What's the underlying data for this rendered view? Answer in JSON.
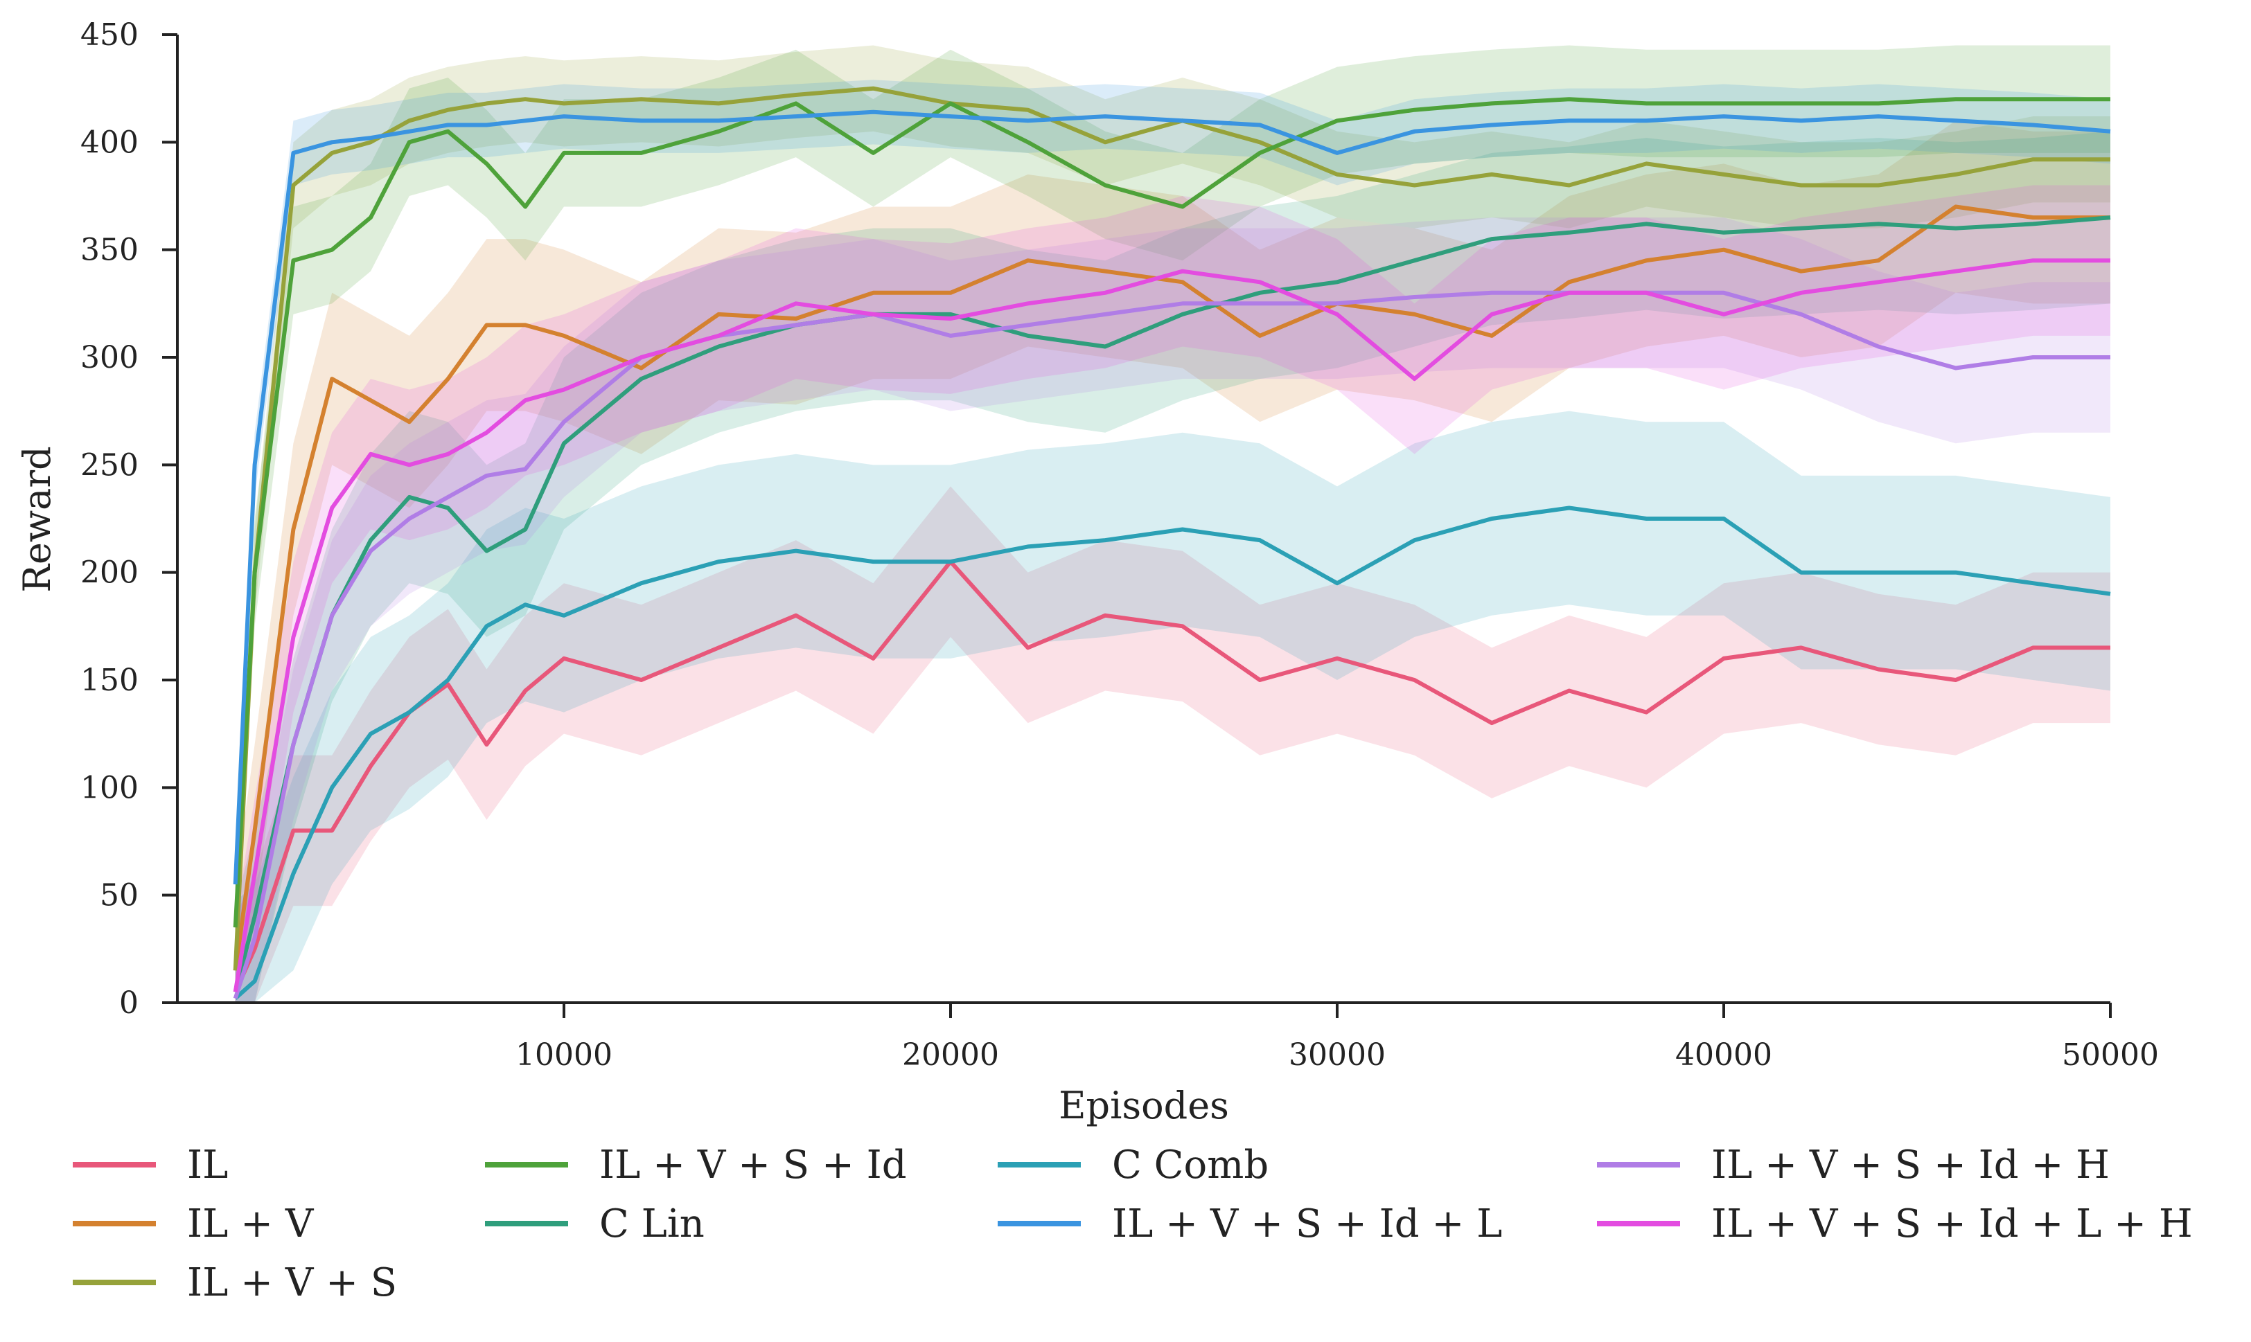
{
  "chart_data": {
    "type": "line",
    "title": "",
    "xlabel": "Episodes",
    "ylabel": "Reward",
    "xlim": [
      0,
      50000
    ],
    "ylim": [
      0,
      450
    ],
    "xticks": [
      10000,
      20000,
      30000,
      40000,
      50000
    ],
    "yticks": [
      0,
      50,
      100,
      150,
      200,
      250,
      300,
      350,
      400,
      450
    ],
    "grid": false,
    "legend_position": "bottom",
    "x": [
      1500,
      2000,
      3000,
      4000,
      5000,
      6000,
      7000,
      8000,
      9000,
      10000,
      12000,
      14000,
      16000,
      18000,
      20000,
      22000,
      24000,
      26000,
      28000,
      30000,
      32000,
      34000,
      36000,
      38000,
      40000,
      42000,
      44000,
      46000,
      48000,
      50000
    ],
    "series": [
      {
        "name": "IL",
        "color": "#e8577a",
        "values": [
          5,
          25,
          80,
          80,
          110,
          135,
          148,
          120,
          145,
          160,
          150,
          165,
          180,
          160,
          205,
          165,
          180,
          175,
          150,
          160,
          150,
          130,
          145,
          135,
          160,
          165,
          155,
          150,
          165,
          165
        ],
        "band": 35
      },
      {
        "name": "IL + V",
        "color": "#d4812f",
        "values": [
          15,
          80,
          220,
          290,
          280,
          270,
          290,
          315,
          315,
          310,
          295,
          320,
          318,
          330,
          330,
          345,
          340,
          335,
          310,
          325,
          320,
          310,
          335,
          345,
          350,
          340,
          345,
          370,
          365,
          365
        ],
        "band": 40
      },
      {
        "name": "IL + V + S",
        "color": "#96a23a",
        "values": [
          15,
          200,
          380,
          395,
          400,
          410,
          415,
          418,
          420,
          418,
          420,
          418,
          422,
          425,
          418,
          415,
          400,
          410,
          400,
          385,
          380,
          385,
          380,
          390,
          385,
          380,
          380,
          385,
          392,
          392
        ],
        "band": 20
      },
      {
        "name": "IL + V + S + Id",
        "color": "#4ea23a",
        "values": [
          35,
          200,
          345,
          350,
          365,
          400,
          405,
          390,
          370,
          395,
          395,
          405,
          418,
          395,
          418,
          400,
          380,
          370,
          395,
          410,
          415,
          418,
          420,
          418,
          418,
          418,
          418,
          420,
          420,
          420
        ],
        "band": 25
      },
      {
        "name": "C Lin",
        "color": "#2f9e7c",
        "values": [
          5,
          40,
          120,
          180,
          215,
          235,
          230,
          210,
          220,
          260,
          290,
          305,
          315,
          320,
          320,
          310,
          305,
          320,
          330,
          335,
          345,
          355,
          358,
          362,
          358,
          360,
          362,
          360,
          362,
          365
        ],
        "band": 40
      },
      {
        "name": "C Comb",
        "color": "#2ba0b5",
        "values": [
          2,
          10,
          60,
          100,
          125,
          135,
          150,
          175,
          185,
          180,
          195,
          205,
          210,
          205,
          205,
          212,
          215,
          220,
          215,
          195,
          215,
          225,
          230,
          225,
          225,
          200,
          200,
          200,
          195,
          190
        ],
        "band": 45
      },
      {
        "name": "IL + V + S + Id + L",
        "color": "#3a94e0",
        "values": [
          55,
          250,
          395,
          400,
          402,
          405,
          408,
          408,
          410,
          412,
          410,
          410,
          412,
          414,
          412,
          410,
          412,
          410,
          408,
          395,
          405,
          408,
          410,
          410,
          412,
          410,
          412,
          410,
          408,
          405
        ],
        "band": 15
      },
      {
        "name": "IL + V + S + Id + H",
        "color": "#b07de6",
        "values": [
          2,
          30,
          120,
          180,
          210,
          225,
          235,
          245,
          248,
          270,
          300,
          310,
          315,
          320,
          310,
          315,
          320,
          325,
          325,
          325,
          328,
          330,
          330,
          330,
          330,
          320,
          305,
          295,
          300,
          300
        ],
        "band": 35
      },
      {
        "name": "IL + V + S + Id + L + H",
        "color": "#e34ce0",
        "values": [
          5,
          60,
          170,
          230,
          255,
          250,
          255,
          265,
          280,
          285,
          300,
          310,
          325,
          320,
          318,
          325,
          330,
          340,
          335,
          320,
          290,
          320,
          330,
          330,
          320,
          330,
          335,
          340,
          345,
          345
        ],
        "band": 35
      }
    ]
  },
  "legend": {
    "items": [
      {
        "label": "IL"
      },
      {
        "label": "IL + V"
      },
      {
        "label": "IL + V + S"
      },
      {
        "label": "IL + V + S + Id"
      },
      {
        "label": "C Lin"
      },
      {
        "label": "C Comb"
      },
      {
        "label": "IL + V + S + Id + L"
      },
      {
        "label": "IL + V + S + Id + H"
      },
      {
        "label": "IL + V + S + Id + L + H"
      }
    ]
  }
}
